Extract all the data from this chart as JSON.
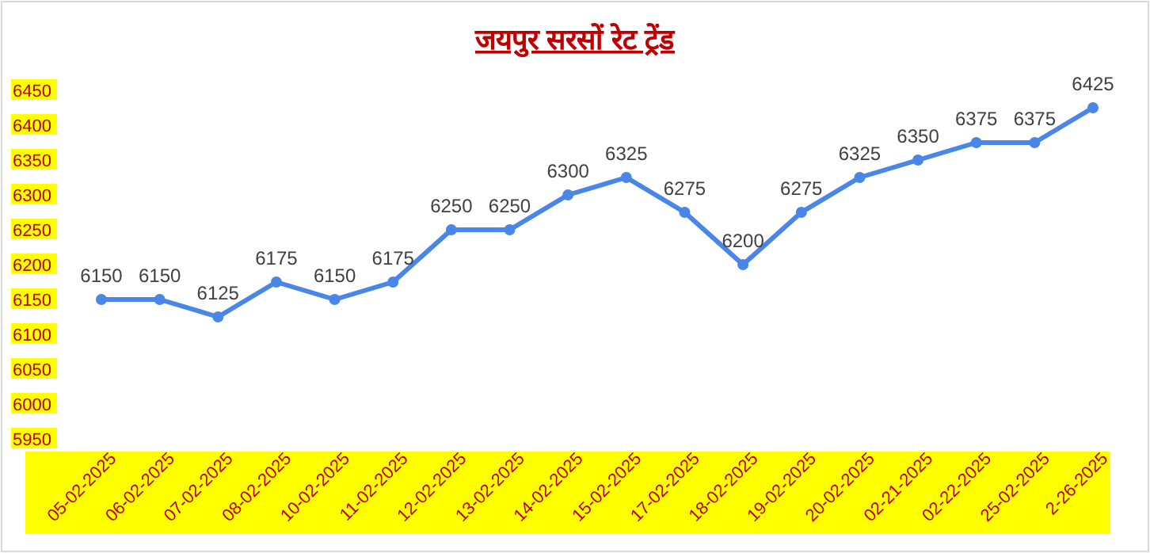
{
  "chart_data": {
    "type": "line",
    "title": "जयपुर सरसों रेट ट्रेंड",
    "categories": [
      "05-02-2025",
      "06-02-2025",
      "07-02-2025",
      "08-02-2025",
      "10-02-2025",
      "11-02-2025",
      "12-02-2025",
      "13-02-2025",
      "14-02-2025",
      "15-02-2025",
      "17-02-2025",
      "18-02-2025",
      "19-02-2025",
      "20-02-2025",
      "02-21-2025",
      "02-22-2025",
      "25-02-2025",
      "2-26-2025"
    ],
    "series": [
      {
        "color": "#4a86e8",
        "values": [
          6150,
          6150,
          6125,
          6175,
          6150,
          6175,
          6250,
          6250,
          6300,
          6325,
          6275,
          6200,
          6275,
          6325,
          6350,
          6375,
          6375,
          6425
        ]
      }
    ],
    "ylim": [
      5950,
      6450
    ],
    "yticks": [
      5950,
      6000,
      6050,
      6100,
      6150,
      6200,
      6250,
      6300,
      6350,
      6400,
      6450
    ],
    "grid": false,
    "marker": "circle",
    "line_style": "solid",
    "data_labels": true
  }
}
